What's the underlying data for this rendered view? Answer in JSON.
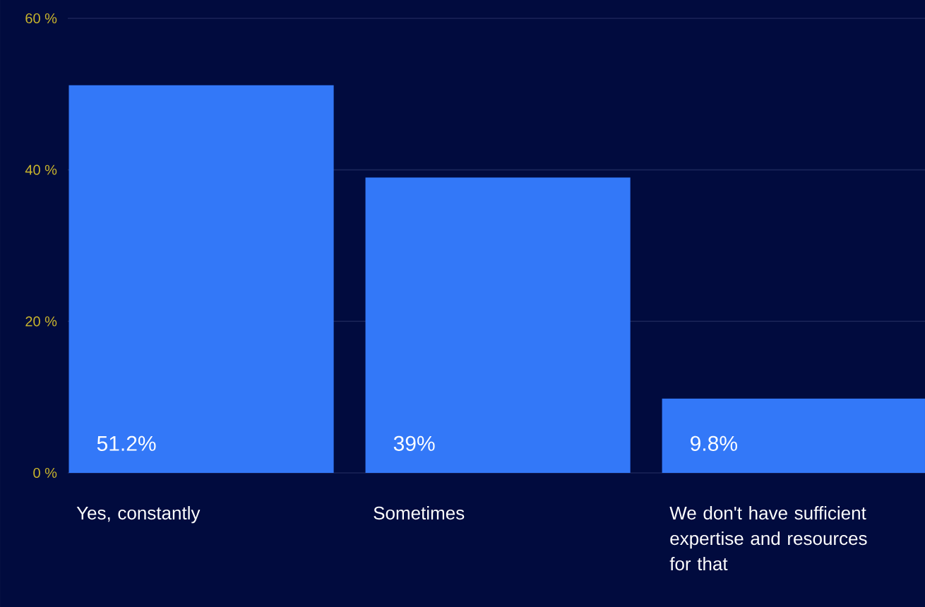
{
  "chart_data": {
    "type": "bar",
    "categories": [
      "Yes, constantly",
      "Sometimes",
      "We don't have sufficient expertise and resources for that"
    ],
    "values": [
      51.2,
      39,
      9.8
    ],
    "value_labels": [
      "51.2%",
      "39%",
      "9.8%"
    ],
    "color": "#3378f8",
    "ylim": [
      0,
      60
    ],
    "yticks": [
      {
        "value": 0,
        "label": "0 %"
      },
      {
        "value": 20,
        "label": "20 %"
      },
      {
        "value": 40,
        "label": "40 %"
      },
      {
        "value": 60,
        "label": "60 %"
      }
    ],
    "grid": "y"
  }
}
